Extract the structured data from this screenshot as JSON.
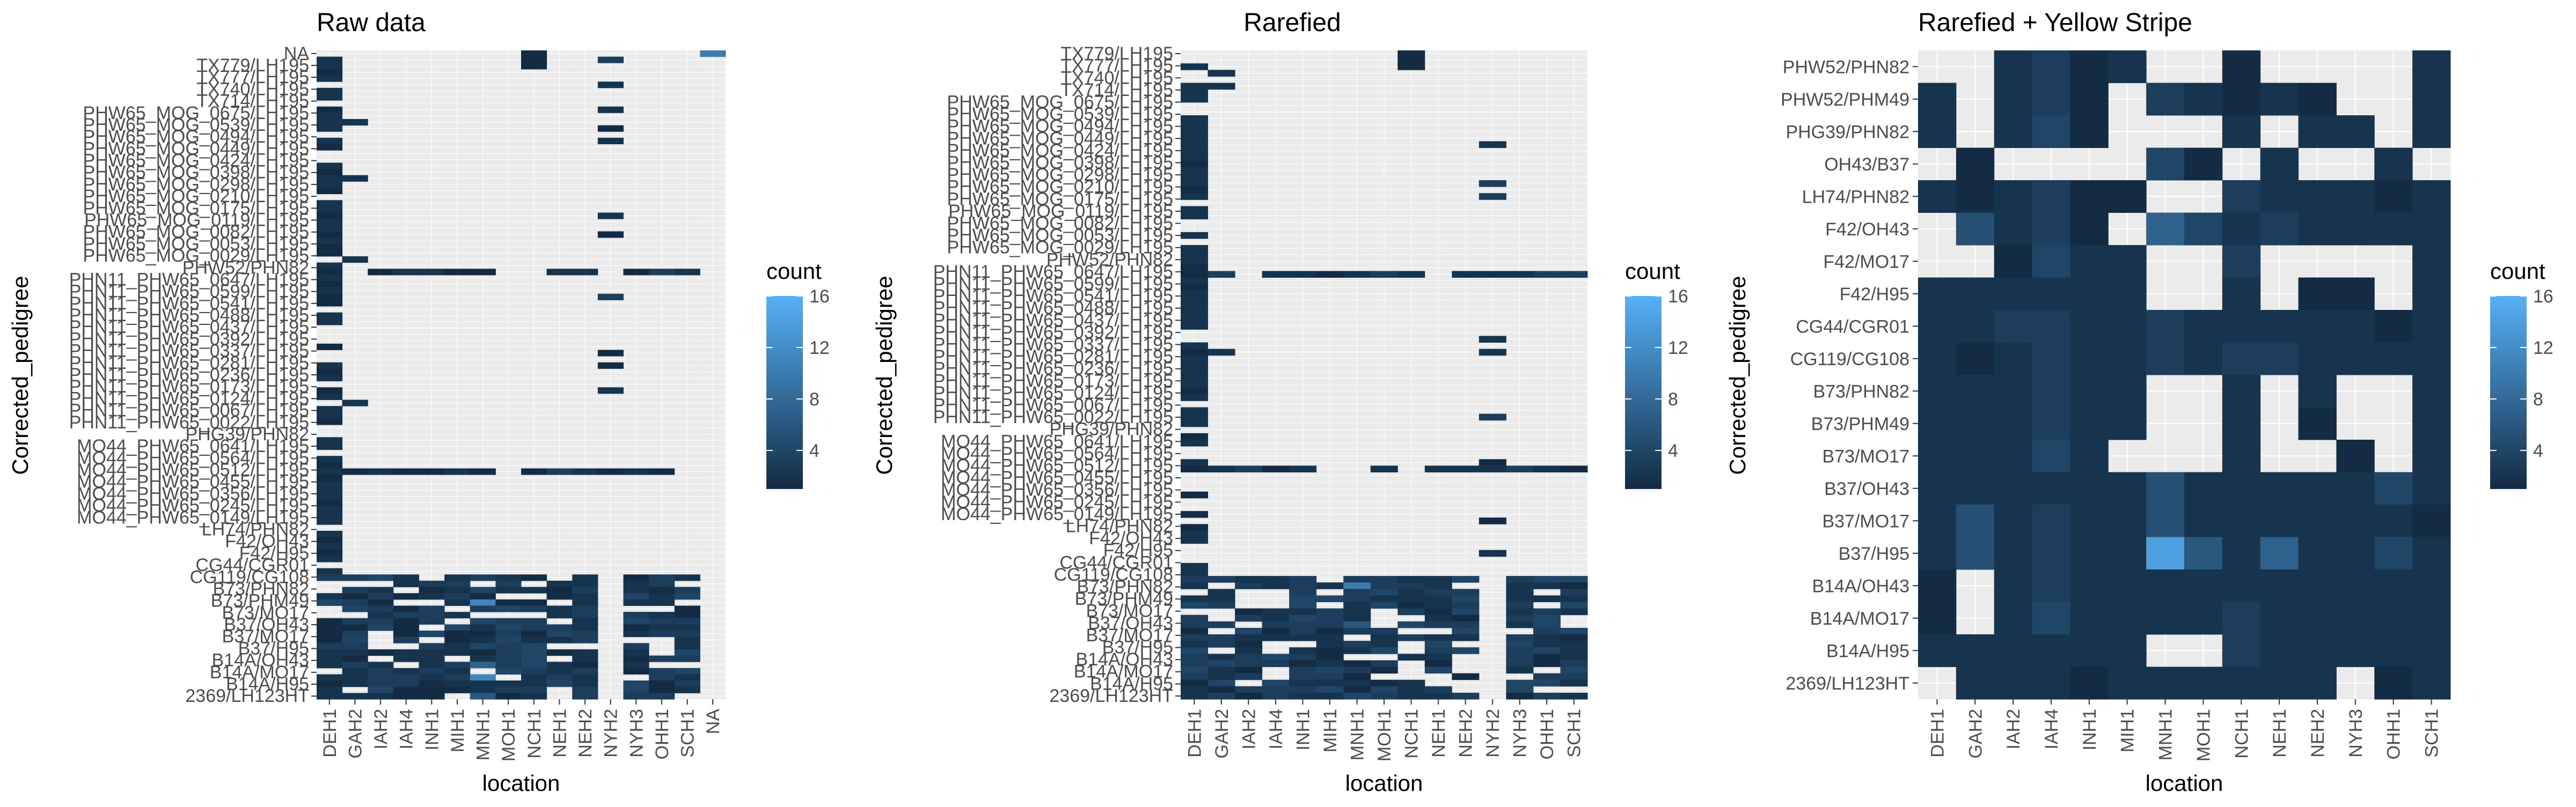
{
  "chart_data": [
    {
      "type": "heatmap",
      "title": "Raw data",
      "xlabel": "location",
      "ylabel": "Corrected_pedigree",
      "x_categories": [
        "DEH1",
        "GAH2",
        "IAH2",
        "IAH4",
        "INH1",
        "MIH1",
        "MNH1",
        "MOH1",
        "NCH1",
        "NEH1",
        "NEH2",
        "NYH2",
        "NYH3",
        "OHH1",
        "SCH1",
        "NA"
      ],
      "y_tick_labels": [
        "NA",
        "TX779/LH195",
        "TX777/LH195",
        "TX740/LH195",
        "TX714/LH195",
        "PHW65_MOG_0675/LH195",
        "PHW65_MOG_0539/LH195",
        "PHW65_MOG_0494/LH195",
        "PHW65_MOG_0449/LH195",
        "PHW65_MOG_0424/LH195",
        "PHW65_MOG_0398/LH195",
        "PHW65_MOG_0298/LH195",
        "PHW65_MOG_0210/LH195",
        "PHW65_MOG_0175/LH195",
        "PHW65_MOG_0119/LH195",
        "PHW65_MOG_0082/LH195",
        "PHW65_MOG_0053/LH195",
        "PHW65_MOG_0029/LH195",
        "PHW52/PHN82",
        "PHN11_PHW65_0647/LH195",
        "PHN11_PHW65_0599/LH195",
        "PHN11_PHW65_0541/LH195",
        "PHN11_PHW65_0488/LH195",
        "PHN11_PHW65_0437/LH195",
        "PHN11_PHW65_0392/LH195",
        "PHN11_PHW65_0337/LH195",
        "PHN11_PHW65_0281/LH195",
        "PHN11_PHW65_0236/LH195",
        "PHN11_PHW65_0173/LH195",
        "PHN11_PHW65_0124/LH195",
        "PHN11_PHW65_0067/LH195",
        "PHN11_PHW65_0022/LH195",
        "PHG39/PHN82",
        "MO44_PHW65_0641/LH195",
        "MO44_PHW65_0564/LH195",
        "MO44_PHW65_0512/LH195",
        "MO44_PHW65_0455/LH195",
        "MO44_PHW65_0356/LH195",
        "MO44_PHW65_0245/LH195",
        "MO44_PHW65_0149/LH195",
        "LH74/PHN82",
        "F42/OH43",
        "F42/H95",
        "CG44/CGR01",
        "CG119/CG108",
        "B73/PHN82",
        "B73/PHM49",
        "B73/MO17",
        "B37/OH43",
        "B37/MO17",
        "B37/H95",
        "B14A/OH43",
        "B14A/MO17",
        "B14A/H95",
        "2369/LH123HT"
      ],
      "n_rows": 104,
      "legend_title": "count",
      "legend_ticks": [
        4,
        8,
        12,
        16
      ],
      "value_range": [
        1,
        16
      ],
      "color_low": "#132B43",
      "color_high": "#56B1F7",
      "missing_color": "#EBEBEB",
      "legend_placement": "right"
    },
    {
      "type": "heatmap",
      "title": "Rarefied",
      "xlabel": "location",
      "ylabel": "Corrected_pedigree",
      "x_categories": [
        "DEH1",
        "GAH2",
        "IAH2",
        "IAH4",
        "INH1",
        "MIH1",
        "MNH1",
        "MOH1",
        "NCH1",
        "NEH1",
        "NEH2",
        "NYH2",
        "NYH3",
        "OHH1",
        "SCH1"
      ],
      "y_tick_labels": [
        "TX779/LH195",
        "TX777/LH195",
        "TX740/LH195",
        "TX714/LH195",
        "PHW65_MOG_0675/LH195",
        "PHW65_MOG_0539/LH195",
        "PHW65_MOG_0494/LH195",
        "PHW65_MOG_0449/LH195",
        "PHW65_MOG_0424/LH195",
        "PHW65_MOG_0398/LH195",
        "PHW65_MOG_0298/LH195",
        "PHW65_MOG_0210/LH195",
        "PHW65_MOG_0175/LH195",
        "PHW65_MOG_0119/LH195",
        "PHW65_MOG_0082/LH195",
        "PHW65_MOG_0053/LH195",
        "PHW65_MOG_0029/LH195",
        "PHW52/PHN82",
        "PHN11_PHW65_0647/LH195",
        "PHN11_PHW65_0599/LH195",
        "PHN11_PHW65_0541/LH195",
        "PHN11_PHW65_0488/LH195",
        "PHN11_PHW65_0437/LH195",
        "PHN11_PHW65_0392/LH195",
        "PHN11_PHW65_0337/LH195",
        "PHN11_PHW65_0281/LH195",
        "PHN11_PHW65_0236/LH195",
        "PHN11_PHW65_0173/LH195",
        "PHN11_PHW65_0124/LH195",
        "PHN11_PHW65_0067/LH195",
        "PHN11_PHW65_0022/LH195",
        "PHG39/PHN82",
        "MO44_PHW65_0641/LH195",
        "MO44_PHW65_0564/LH195",
        "MO44_PHW65_0512/LH195",
        "MO44_PHW65_0455/LH195",
        "MO44_PHW65_0356/LH195",
        "MO44_PHW65_0245/LH195",
        "MO44_PHW65_0149/LH195",
        "LH74/PHN82",
        "F42/OH43",
        "F42/H95",
        "CG44/CGR01",
        "CG119/CG108",
        "B73/PHN82",
        "B73/PHM49",
        "B73/MO17",
        "B37/OH43",
        "B37/MO17",
        "B37/H95",
        "B14A/OH43",
        "B14A/MO17",
        "B14A/H95",
        "2369/LH123HT"
      ],
      "n_rows": 100,
      "legend_title": "count",
      "legend_ticks": [
        4,
        8,
        12,
        16
      ],
      "value_range": [
        1,
        16
      ],
      "color_low": "#132B43",
      "color_high": "#56B1F7",
      "missing_color": "#EBEBEB",
      "legend_placement": "right"
    },
    {
      "type": "heatmap",
      "title": "Rarefied + Yellow Stripe",
      "xlabel": "location",
      "ylabel": "Corrected_pedigree",
      "x_categories": [
        "DEH1",
        "GAH2",
        "IAH2",
        "IAH4",
        "INH1",
        "MIH1",
        "MNH1",
        "MOH1",
        "NCH1",
        "NEH1",
        "NEH2",
        "NYH3",
        "OHH1",
        "SCH1"
      ],
      "y_categories": [
        "PHW52/PHN82",
        "PHW52/PHM49",
        "PHG39/PHN82",
        "OH43/B37",
        "LH74/PHN82",
        "F42/OH43",
        "F42/MO17",
        "F42/H95",
        "CG44/CGR01",
        "CG119/CG108",
        "B73/PHN82",
        "B73/PHM49",
        "B73/MO17",
        "B37/OH43",
        "B37/MO17",
        "B37/H95",
        "B14A/OH43",
        "B14A/MO17",
        "B14A/H95",
        "2369/LH123HT"
      ],
      "values": [
        [
          null,
          null,
          2,
          3,
          1,
          2,
          null,
          null,
          1,
          null,
          null,
          null,
          null,
          2
        ],
        [
          2,
          null,
          2,
          3,
          1,
          null,
          3,
          2,
          1,
          2,
          1,
          null,
          null,
          2
        ],
        [
          2,
          null,
          2,
          4,
          1,
          null,
          null,
          null,
          2,
          null,
          2,
          2,
          null,
          2
        ],
        [
          null,
          1,
          null,
          null,
          null,
          null,
          4,
          1,
          null,
          2,
          null,
          null,
          2,
          null
        ],
        [
          2,
          1,
          2,
          3,
          1,
          1,
          null,
          null,
          3,
          2,
          2,
          2,
          1,
          2
        ],
        [
          null,
          5,
          2,
          3,
          1,
          null,
          7,
          4,
          2,
          3,
          2,
          2,
          2,
          2
        ],
        [
          null,
          null,
          1,
          4,
          2,
          2,
          null,
          null,
          3,
          null,
          null,
          null,
          null,
          2
        ],
        [
          2,
          2,
          2,
          2,
          2,
          2,
          null,
          null,
          2,
          null,
          1,
          1,
          null,
          2
        ],
        [
          2,
          2,
          3,
          3,
          2,
          2,
          3,
          2,
          2,
          2,
          2,
          2,
          1,
          2
        ],
        [
          2,
          1,
          2,
          3,
          2,
          2,
          3,
          2,
          3,
          3,
          2,
          2,
          2,
          2
        ],
        [
          2,
          2,
          2,
          3,
          2,
          2,
          null,
          null,
          2,
          null,
          2,
          null,
          null,
          2
        ],
        [
          2,
          2,
          2,
          3,
          2,
          2,
          null,
          null,
          2,
          null,
          1,
          null,
          null,
          2
        ],
        [
          2,
          2,
          2,
          4,
          2,
          null,
          null,
          null,
          2,
          null,
          null,
          1,
          null,
          2
        ],
        [
          2,
          2,
          2,
          2,
          2,
          2,
          5,
          2,
          2,
          2,
          2,
          2,
          4,
          2
        ],
        [
          2,
          5,
          2,
          3,
          2,
          2,
          5,
          2,
          2,
          2,
          2,
          2,
          2,
          1
        ],
        [
          2,
          5,
          2,
          3,
          2,
          2,
          14,
          6,
          2,
          7,
          2,
          2,
          4,
          2
        ],
        [
          1,
          null,
          2,
          3,
          2,
          2,
          2,
          2,
          2,
          2,
          2,
          2,
          2,
          2
        ],
        [
          1,
          null,
          2,
          4,
          2,
          2,
          2,
          2,
          3,
          2,
          2,
          2,
          2,
          2
        ],
        [
          2,
          2,
          2,
          2,
          2,
          2,
          null,
          null,
          3,
          2,
          2,
          2,
          2,
          2
        ],
        [
          null,
          2,
          2,
          2,
          1,
          2,
          2,
          2,
          2,
          2,
          2,
          null,
          1,
          2
        ]
      ],
      "legend_title": "count",
      "legend_ticks": [
        4,
        8,
        12,
        16
      ],
      "value_range": [
        1,
        16
      ],
      "color_low": "#132B43",
      "color_high": "#56B1F7",
      "missing_color": "#EBEBEB",
      "legend_placement": "right"
    }
  ]
}
